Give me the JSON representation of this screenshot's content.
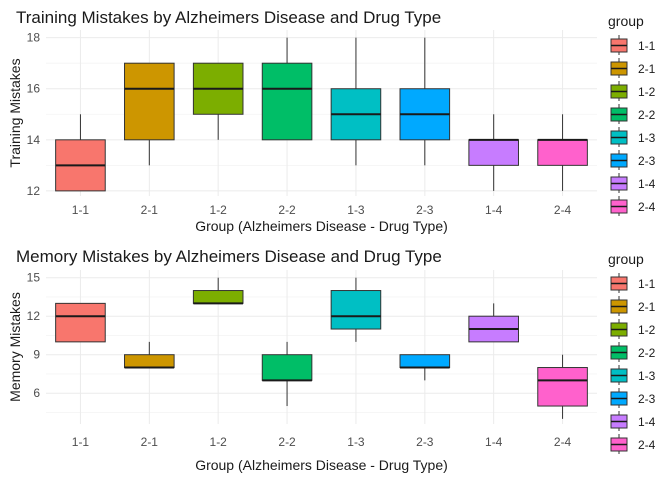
{
  "chart_data": [
    {
      "type": "box",
      "title": "Training Mistakes by Alzheimers Disease and Drug Type",
      "xlabel": "Group (Alzheimers Disease - Drug Type)",
      "ylabel": "Training Mistakes",
      "ylim": [
        11.8,
        18.3
      ],
      "yticks": [
        "12",
        "14",
        "16",
        "18"
      ],
      "ytick_values": [
        12,
        14,
        16,
        18
      ],
      "grid": true,
      "legend_position": "right",
      "legend_title": "group",
      "categories": [
        "1-1",
        "2-1",
        "1-2",
        "2-2",
        "1-3",
        "2-3",
        "1-4",
        "2-4"
      ],
      "boxes": [
        {
          "group": "1-1",
          "min": 12,
          "q1": 12,
          "median": 13,
          "q3": 14,
          "max": 15
        },
        {
          "group": "2-1",
          "min": 13,
          "q1": 14,
          "median": 16,
          "q3": 17,
          "max": 17
        },
        {
          "group": "1-2",
          "min": 14,
          "q1": 15,
          "median": 16,
          "q3": 17,
          "max": 17
        },
        {
          "group": "2-2",
          "min": 14,
          "q1": 14,
          "median": 16,
          "q3": 17,
          "max": 18
        },
        {
          "group": "1-3",
          "min": 13,
          "q1": 14,
          "median": 15,
          "q3": 16,
          "max": 18
        },
        {
          "group": "2-3",
          "min": 13,
          "q1": 14,
          "median": 15,
          "q3": 16,
          "max": 18
        },
        {
          "group": "1-4",
          "min": 12,
          "q1": 13,
          "median": 14,
          "q3": 14,
          "max": 15
        },
        {
          "group": "2-4",
          "min": 12,
          "q1": 13,
          "median": 14,
          "q3": 14,
          "max": 15
        }
      ]
    },
    {
      "type": "box",
      "title": "Memory Mistakes by Alzheimers Disease and Drug Type",
      "xlabel": "Group (Alzheimers Disease - Drug Type)",
      "ylabel": "Memory Mistakes",
      "ylim": [
        3.6,
        15.6
      ],
      "yticks": [
        "6",
        "9",
        "12",
        "15"
      ],
      "ytick_values": [
        6,
        9,
        12,
        15
      ],
      "grid": true,
      "legend_position": "right",
      "legend_title": "group",
      "categories": [
        "1-1",
        "2-1",
        "1-2",
        "2-2",
        "1-3",
        "2-3",
        "1-4",
        "2-4"
      ],
      "boxes": [
        {
          "group": "1-1",
          "min": 10,
          "q1": 10,
          "median": 12,
          "q3": 13,
          "max": 13
        },
        {
          "group": "2-1",
          "min": 8,
          "q1": 8,
          "median": 8,
          "q3": 9,
          "max": 10
        },
        {
          "group": "1-2",
          "min": 13,
          "q1": 13,
          "median": 13,
          "q3": 14,
          "max": 15
        },
        {
          "group": "2-2",
          "min": 5,
          "q1": 7,
          "median": 7,
          "q3": 9,
          "max": 10
        },
        {
          "group": "1-3",
          "min": 10,
          "q1": 11,
          "median": 12,
          "q3": 14,
          "max": 15
        },
        {
          "group": "2-3",
          "min": 7,
          "q1": 8,
          "median": 8,
          "q3": 9,
          "max": 9
        },
        {
          "group": "1-4",
          "min": 10,
          "q1": 10,
          "median": 11,
          "q3": 12,
          "max": 13
        },
        {
          "group": "2-4",
          "min": 4,
          "q1": 5,
          "median": 7,
          "q3": 8,
          "max": 9
        }
      ]
    }
  ],
  "group_colors": {
    "1-1": "#F8766D",
    "2-1": "#CD9600",
    "1-2": "#7CAE00",
    "2-2": "#00BE67",
    "1-3": "#00BFC4",
    "2-3": "#00A9FF",
    "1-4": "#C77CFF",
    "2-4": "#FF61CC"
  }
}
